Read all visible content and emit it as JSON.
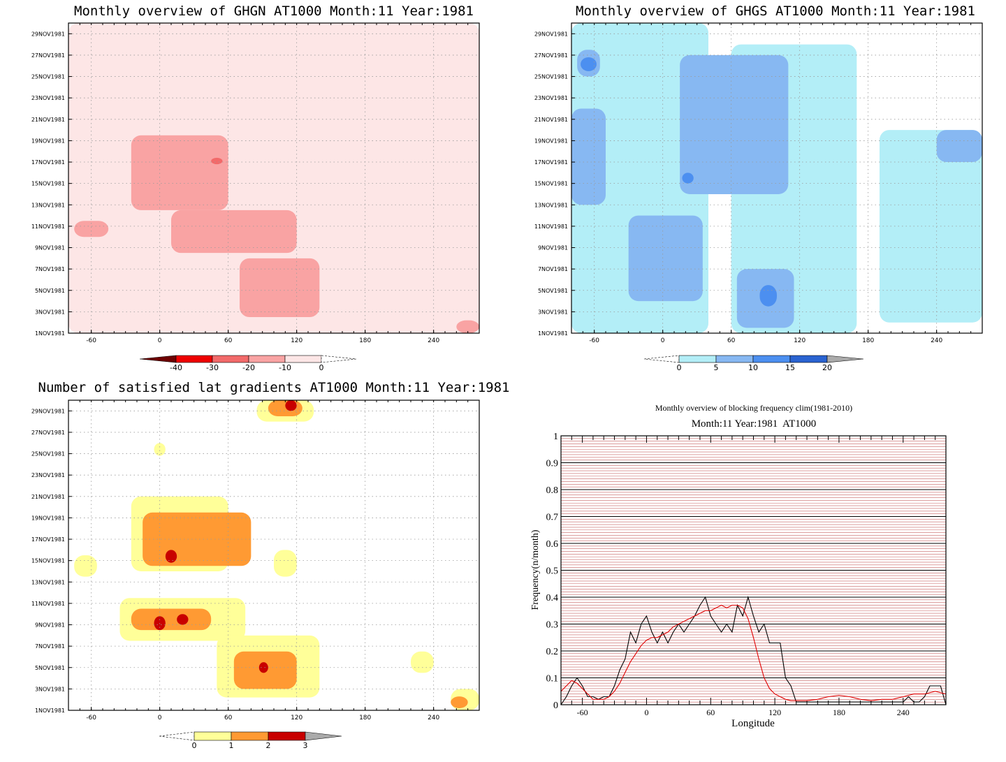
{
  "colors": {
    "ghgn": [
      "#fde6e6",
      "#f9a3a3",
      "#f26a6a",
      "#ee0000",
      "#6e0000"
    ],
    "ghgs": [
      "#b3eef7",
      "#87b8f2",
      "#4c8ff0",
      "#2a63d1",
      "#aaaaaa"
    ],
    "nsat": [
      "#ffff99",
      "#ff9a33",
      "#c80000",
      "#aaaaaa"
    ],
    "black_line": "#000000",
    "red_line": "#e00000",
    "grid_red": "#c86464"
  },
  "chart_data": [
    {
      "id": "ghgn",
      "type": "heatmap",
      "title": "Monthly overview of GHGN AT1000 Month:11 Year:1981",
      "x_ticks": [
        "-60",
        "0",
        "60",
        "120",
        "180",
        "240"
      ],
      "x_tick_values": [
        -60,
        0,
        60,
        120,
        180,
        240
      ],
      "xlim": [
        -80,
        280
      ],
      "y_ticks": [
        "1NOV1981",
        "3NOV1981",
        "5NOV1981",
        "7NOV1981",
        "9NOV1981",
        "11NOV1981",
        "13NOV1981",
        "15NOV1981",
        "17NOV1981",
        "19NOV1981",
        "21NOV1981",
        "23NOV1981",
        "25NOV1981",
        "27NOV1981",
        "29NOV1981"
      ],
      "ylim": [
        1,
        30
      ],
      "colorbar": {
        "labels": [
          "-40",
          "-30",
          "-20",
          "-10",
          "0"
        ],
        "values": [
          -40,
          -30,
          -20,
          -10,
          0
        ]
      },
      "regions": [
        {
          "level": 1,
          "lon": [
            -80,
            280
          ],
          "day": [
            1,
            30
          ]
        },
        {
          "level": 2,
          "lon": [
            -25,
            60
          ],
          "day": [
            12.5,
            19.5
          ]
        },
        {
          "level": 2,
          "lon": [
            10,
            120
          ],
          "day": [
            8.5,
            12.5
          ]
        },
        {
          "level": 2,
          "lon": [
            70,
            140
          ],
          "day": [
            2.5,
            8
          ]
        },
        {
          "level": 2,
          "lon": [
            -75,
            -45
          ],
          "day": [
            10,
            11.5
          ]
        },
        {
          "level": 2,
          "lon": [
            260,
            280
          ],
          "day": [
            1,
            2.2
          ]
        },
        {
          "level": 3,
          "lon": [
            45,
            55
          ],
          "day": [
            16.8,
            17.4
          ]
        }
      ]
    },
    {
      "id": "ghgs",
      "type": "heatmap",
      "title": "Monthly overview of GHGS AT1000 Month:11 Year:1981",
      "x_ticks": [
        "-60",
        "0",
        "60",
        "120",
        "180",
        "240"
      ],
      "x_tick_values": [
        -60,
        0,
        60,
        120,
        180,
        240
      ],
      "xlim": [
        -80,
        280
      ],
      "y_ticks": [
        "1NOV1981",
        "3NOV1981",
        "5NOV1981",
        "7NOV1981",
        "9NOV1981",
        "11NOV1981",
        "13NOV1981",
        "15NOV1981",
        "17NOV1981",
        "19NOV1981",
        "21NOV1981",
        "23NOV1981",
        "25NOV1981",
        "27NOV1981",
        "29NOV1981"
      ],
      "ylim": [
        1,
        30
      ],
      "colorbar": {
        "labels": [
          "0",
          "5",
          "10",
          "15",
          "20"
        ],
        "values": [
          0,
          5,
          10,
          15,
          20
        ]
      },
      "regions": [
        {
          "level": 1,
          "lon": [
            -80,
            40
          ],
          "day": [
            1,
            30
          ]
        },
        {
          "level": 1,
          "lon": [
            60,
            170
          ],
          "day": [
            1,
            28
          ]
        },
        {
          "level": 1,
          "lon": [
            190,
            280
          ],
          "day": [
            2,
            20
          ]
        },
        {
          "level": 2,
          "lon": [
            -80,
            -50
          ],
          "day": [
            13,
            22
          ]
        },
        {
          "level": 2,
          "lon": [
            15,
            110
          ],
          "day": [
            14,
            27
          ]
        },
        {
          "level": 2,
          "lon": [
            -30,
            35
          ],
          "day": [
            4,
            12
          ]
        },
        {
          "level": 2,
          "lon": [
            65,
            115
          ],
          "day": [
            1.5,
            7
          ]
        },
        {
          "level": 2,
          "lon": [
            240,
            280
          ],
          "day": [
            17,
            20
          ]
        },
        {
          "level": 2,
          "lon": [
            -75,
            -55
          ],
          "day": [
            25,
            27.5
          ]
        },
        {
          "level": 3,
          "lon": [
            -72,
            -58
          ],
          "day": [
            25.5,
            26.8
          ]
        },
        {
          "level": 3,
          "lon": [
            85,
            100
          ],
          "day": [
            3.5,
            5.5
          ]
        },
        {
          "level": 3,
          "lon": [
            17,
            27
          ],
          "day": [
            15,
            16
          ]
        }
      ]
    },
    {
      "id": "nsat",
      "type": "heatmap",
      "title": "Number of satisfied lat gradients AT1000 Month:11 Year:1981",
      "x_ticks": [
        "-60",
        "0",
        "60",
        "120",
        "180",
        "240"
      ],
      "x_tick_values": [
        -60,
        0,
        60,
        120,
        180,
        240
      ],
      "xlim": [
        -80,
        280
      ],
      "y_ticks": [
        "1NOV1981",
        "3NOV1981",
        "5NOV1981",
        "7NOV1981",
        "9NOV1981",
        "11NOV1981",
        "13NOV1981",
        "15NOV1981",
        "17NOV1981",
        "19NOV1981",
        "21NOV1981",
        "23NOV1981",
        "25NOV1981",
        "27NOV1981",
        "29NOV1981"
      ],
      "ylim": [
        1,
        30
      ],
      "colorbar": {
        "labels": [
          "0",
          "1",
          "2",
          "3"
        ],
        "values": [
          0,
          1,
          2,
          3
        ]
      },
      "regions": [
        {
          "level": 1,
          "lon": [
            -25,
            60
          ],
          "day": [
            14,
            21
          ]
        },
        {
          "level": 1,
          "lon": [
            -35,
            75
          ],
          "day": [
            7.5,
            11.5
          ]
        },
        {
          "level": 1,
          "lon": [
            50,
            140
          ],
          "day": [
            2.2,
            8
          ]
        },
        {
          "level": 1,
          "lon": [
            85,
            135
          ],
          "day": [
            28,
            30
          ]
        },
        {
          "level": 1,
          "lon": [
            -75,
            -55
          ],
          "day": [
            13.5,
            15.5
          ]
        },
        {
          "level": 1,
          "lon": [
            -5,
            5
          ],
          "day": [
            24.8,
            26
          ]
        },
        {
          "level": 1,
          "lon": [
            220,
            240
          ],
          "day": [
            4.5,
            6.5
          ]
        },
        {
          "level": 1,
          "lon": [
            255,
            280
          ],
          "day": [
            1,
            3
          ]
        },
        {
          "level": 1,
          "lon": [
            100,
            120
          ],
          "day": [
            13.5,
            16
          ]
        },
        {
          "level": 2,
          "lon": [
            -15,
            80
          ],
          "day": [
            14.5,
            19.5
          ]
        },
        {
          "level": 2,
          "lon": [
            -25,
            45
          ],
          "day": [
            8.5,
            10.5
          ]
        },
        {
          "level": 2,
          "lon": [
            65,
            120
          ],
          "day": [
            3,
            6.5
          ]
        },
        {
          "level": 2,
          "lon": [
            95,
            125
          ],
          "day": [
            28.5,
            30
          ]
        },
        {
          "level": 2,
          "lon": [
            255,
            270
          ],
          "day": [
            1.2,
            2.3
          ]
        },
        {
          "level": 3,
          "lon": [
            5,
            15
          ],
          "day": [
            14.8,
            16
          ]
        },
        {
          "level": 3,
          "lon": [
            -5,
            5
          ],
          "day": [
            8.5,
            9.8
          ]
        },
        {
          "level": 3,
          "lon": [
            15,
            25
          ],
          "day": [
            9,
            10
          ]
        },
        {
          "level": 3,
          "lon": [
            87,
            95
          ],
          "day": [
            4.5,
            5.5
          ]
        },
        {
          "level": 3,
          "lon": [
            110,
            120
          ],
          "day": [
            29,
            30
          ]
        }
      ]
    },
    {
      "id": "freq",
      "type": "line",
      "title": "Monthly overview of blocking frequency clim(1981-2010)",
      "subtitle": "Month:11 Year:1981  AT1000",
      "xlabel": "Longitude",
      "ylabel": "Frequency(n/month)",
      "x_ticks": [
        "-60",
        "0",
        "60",
        "120",
        "180",
        "240"
      ],
      "x_tick_values": [
        -60,
        0,
        60,
        120,
        180,
        240
      ],
      "y_ticks": [
        "0",
        "0.1",
        "0.2",
        "0.3",
        "0.4",
        "0.5",
        "0.6",
        "0.7",
        "0.8",
        "0.9",
        "1"
      ],
      "y_tick_values": [
        0,
        0.1,
        0.2,
        0.3,
        0.4,
        0.5,
        0.6,
        0.7,
        0.8,
        0.9,
        1
      ],
      "xlim": [
        -80,
        280
      ],
      "ylim": [
        0,
        1
      ],
      "grid": true,
      "series": [
        {
          "color": "#000000",
          "x": [
            -80,
            -75,
            -70,
            -65,
            -60,
            -55,
            -50,
            -45,
            -40,
            -35,
            -30,
            -25,
            -20,
            -15,
            -10,
            -5,
            0,
            5,
            10,
            15,
            20,
            25,
            30,
            35,
            40,
            45,
            50,
            55,
            60,
            65,
            70,
            75,
            80,
            85,
            90,
            95,
            100,
            105,
            110,
            115,
            120,
            125,
            130,
            135,
            140,
            145,
            150,
            160,
            170,
            180,
            190,
            200,
            210,
            220,
            230,
            240,
            245,
            250,
            255,
            260,
            265,
            270,
            275,
            280
          ],
          "y": [
            0,
            0.03,
            0.07,
            0.1,
            0.07,
            0.03,
            0.03,
            0.02,
            0.03,
            0.03,
            0.07,
            0.13,
            0.17,
            0.27,
            0.23,
            0.3,
            0.33,
            0.27,
            0.23,
            0.27,
            0.23,
            0.27,
            0.3,
            0.27,
            0.3,
            0.33,
            0.37,
            0.4,
            0.33,
            0.3,
            0.27,
            0.3,
            0.27,
            0.37,
            0.33,
            0.4,
            0.33,
            0.27,
            0.3,
            0.23,
            0.23,
            0.23,
            0.1,
            0.07,
            0.01,
            0.01,
            0.01,
            0.01,
            0.01,
            0.01,
            0.01,
            0.01,
            0.01,
            0.01,
            0.01,
            0.01,
            0.03,
            0.01,
            0.01,
            0.03,
            0.07,
            0.07,
            0.07,
            0
          ]
        },
        {
          "color": "#e00000",
          "x": [
            -80,
            -75,
            -70,
            -65,
            -60,
            -55,
            -50,
            -45,
            -40,
            -35,
            -30,
            -25,
            -20,
            -15,
            -10,
            -5,
            0,
            5,
            10,
            15,
            20,
            25,
            30,
            35,
            40,
            45,
            50,
            55,
            60,
            65,
            70,
            75,
            80,
            85,
            90,
            95,
            100,
            105,
            110,
            115,
            120,
            125,
            130,
            135,
            140,
            150,
            160,
            170,
            180,
            190,
            200,
            210,
            220,
            230,
            240,
            250,
            260,
            270,
            280
          ],
          "y": [
            0.05,
            0.07,
            0.09,
            0.08,
            0.06,
            0.04,
            0.02,
            0.02,
            0.02,
            0.03,
            0.05,
            0.08,
            0.12,
            0.16,
            0.19,
            0.22,
            0.24,
            0.25,
            0.25,
            0.26,
            0.27,
            0.29,
            0.3,
            0.31,
            0.32,
            0.33,
            0.34,
            0.35,
            0.35,
            0.36,
            0.37,
            0.36,
            0.37,
            0.37,
            0.36,
            0.32,
            0.25,
            0.17,
            0.1,
            0.06,
            0.04,
            0.03,
            0.02,
            0.015,
            0.015,
            0.015,
            0.02,
            0.03,
            0.035,
            0.03,
            0.02,
            0.015,
            0.02,
            0.02,
            0.03,
            0.04,
            0.04,
            0.05,
            0.04
          ]
        }
      ]
    }
  ]
}
